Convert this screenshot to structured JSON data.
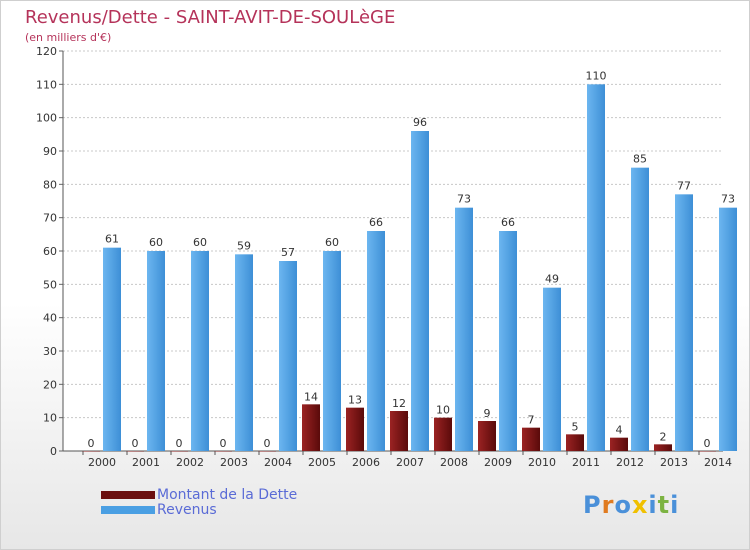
{
  "chart_data": {
    "type": "bar",
    "title": "Revenus/Dette - SAINT-AVIT-DE-SOULèGE",
    "subtitle": "(en milliers d'€)",
    "categories": [
      "2000",
      "2001",
      "2002",
      "2003",
      "2004",
      "2005",
      "2006",
      "2007",
      "2008",
      "2009",
      "2010",
      "2011",
      "2012",
      "2013",
      "2014"
    ],
    "series": [
      {
        "name": "Montant de la Dette",
        "color": "#6b0f0f",
        "values": [
          0,
          0,
          0,
          0,
          0,
          14,
          13,
          12,
          10,
          9,
          7,
          5,
          4,
          2,
          0
        ]
      },
      {
        "name": "Revenus",
        "color": "#4a9fe3",
        "values": [
          61,
          60,
          60,
          59,
          57,
          60,
          66,
          96,
          73,
          66,
          49,
          110,
          85,
          77,
          73
        ]
      }
    ],
    "ylim": [
      0,
      120
    ],
    "yticks": [
      0,
      10,
      20,
      30,
      40,
      50,
      60,
      70,
      80,
      90,
      100,
      110,
      120
    ],
    "grid": true,
    "legend_position": "bottom-left"
  },
  "logo": {
    "letters": [
      "P",
      "r",
      "o",
      "x",
      "i",
      "t",
      "i"
    ],
    "colors": [
      "#4a90d9",
      "#e07b20",
      "#4a90d9",
      "#f0c000",
      "#4a90d9",
      "#7cb342",
      "#4a90d9"
    ]
  }
}
